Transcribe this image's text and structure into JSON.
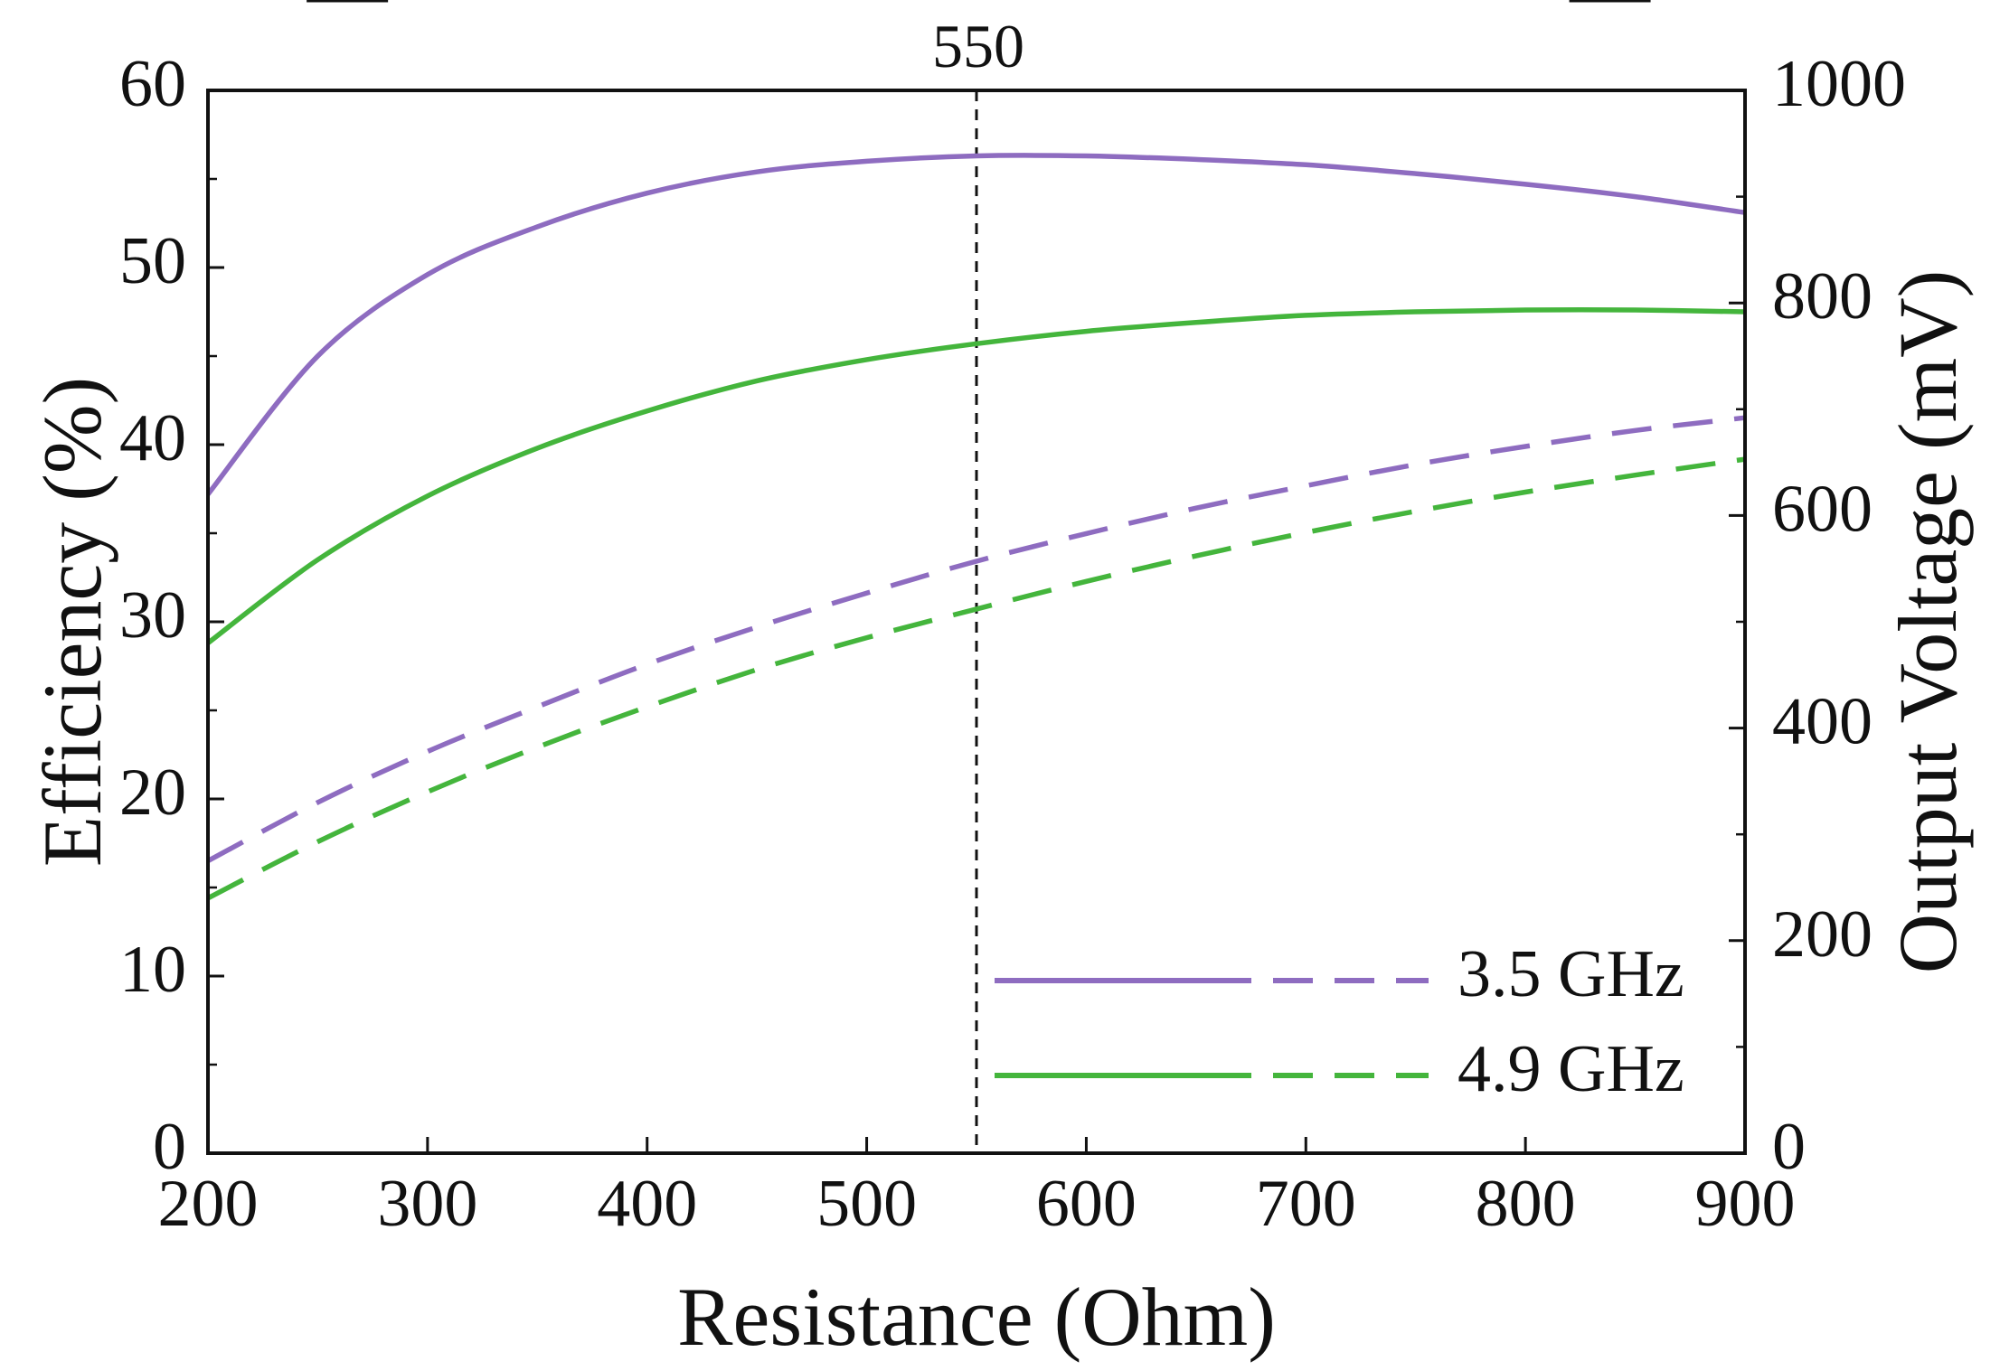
{
  "chart_data": {
    "type": "line",
    "title": "",
    "xlabel": "Resistance (Ohm)",
    "ylabel_left": "Efficiency (%)",
    "ylabel_right": "Output Voltage (mV)",
    "xlim": [
      200,
      900
    ],
    "ylim_left": [
      0,
      60
    ],
    "ylim_right": [
      0,
      1000
    ],
    "x_ticks": [
      "200",
      "300",
      "400",
      "500",
      "600",
      "700",
      "800",
      "900"
    ],
    "y_left_ticks": [
      "0",
      "10",
      "20",
      "30",
      "40",
      "50",
      "60"
    ],
    "y_right_ticks": [
      "0",
      "200",
      "400",
      "600",
      "800",
      "1000"
    ],
    "grid": false,
    "reference_line": {
      "x": 550,
      "label": "550"
    },
    "legend": {
      "position": "bottom-right",
      "entries": [
        {
          "label": "3.5 GHz",
          "color": "#8e6cc0"
        },
        {
          "label": "4.9 GHz",
          "color": "#44b53c"
        }
      ]
    },
    "x": [
      200,
      250,
      300,
      350,
      400,
      450,
      500,
      550,
      600,
      650,
      700,
      750,
      800,
      850,
      900
    ],
    "series": [
      {
        "name": "3.5 GHz efficiency",
        "axis": "left",
        "style": "solid",
        "color": "#8e6cc0",
        "values": [
          37.2,
          45.0,
          49.6,
          52.3,
          54.2,
          55.4,
          56.0,
          56.3,
          56.3,
          56.1,
          55.8,
          55.3,
          54.7,
          54.0,
          53.1
        ]
      },
      {
        "name": "4.9 GHz efficiency",
        "axis": "left",
        "style": "solid",
        "color": "#44b53c",
        "values": [
          28.8,
          33.5,
          37.1,
          39.8,
          41.9,
          43.6,
          44.8,
          45.7,
          46.4,
          46.9,
          47.3,
          47.5,
          47.6,
          47.6,
          47.5
        ]
      },
      {
        "name": "3.5 GHz output voltage",
        "axis": "right",
        "style": "dashed",
        "color": "#8e6cc0",
        "values": [
          275,
          330,
          378,
          420,
          460,
          495,
          527,
          557,
          583,
          607,
          628,
          648,
          665,
          680,
          692
        ]
      },
      {
        "name": "4.9 GHz output voltage",
        "axis": "right",
        "style": "dashed",
        "color": "#44b53c",
        "values": [
          240,
          293,
          340,
          382,
          420,
          455,
          485,
          512,
          538,
          562,
          584,
          604,
          622,
          638,
          653
        ]
      }
    ],
    "annotations": [
      {
        "type": "ellipse-arrow",
        "points_to": "right axis",
        "target": "dashed curves",
        "color": "#1a3050"
      },
      {
        "type": "ellipse-arrow",
        "points_to": "left axis",
        "target": "solid curves",
        "color": "#1a3050"
      }
    ]
  }
}
